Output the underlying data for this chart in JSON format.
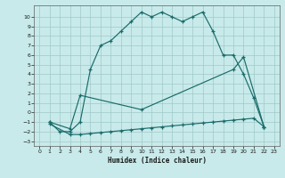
{
  "xlabel": "Humidex (Indice chaleur)",
  "background_color": "#c8eaea",
  "grid_color": "#a0c8c8",
  "line_color": "#1a6b6b",
  "xlim": [
    -0.5,
    23.5
  ],
  "ylim": [
    -3.5,
    11.2
  ],
  "xticks": [
    0,
    1,
    2,
    3,
    4,
    5,
    6,
    7,
    8,
    9,
    10,
    11,
    12,
    13,
    14,
    15,
    16,
    17,
    18,
    19,
    20,
    21,
    22,
    23
  ],
  "yticks": [
    -3,
    -2,
    -1,
    0,
    1,
    2,
    3,
    4,
    5,
    6,
    7,
    8,
    9,
    10
  ],
  "curve1_x": [
    1,
    2,
    3,
    4,
    5,
    6,
    7,
    8,
    9,
    10,
    11,
    12,
    13,
    14,
    15,
    16,
    17,
    18,
    19,
    20,
    21,
    22
  ],
  "curve1_y": [
    -1,
    -2,
    -2,
    -1,
    4.5,
    7.0,
    7.5,
    8.5,
    9.5,
    10.5,
    10.0,
    10.5,
    10.0,
    9.5,
    10.0,
    10.5,
    8.5,
    6.0,
    6.0,
    4.0,
    1.5,
    -1.5
  ],
  "curve2_x": [
    1,
    3,
    4,
    10,
    19,
    20,
    22
  ],
  "curve2_y": [
    -1,
    -1.7,
    1.8,
    0.3,
    4.5,
    5.8,
    -1.5
  ],
  "curve3_x": [
    1,
    3,
    4,
    5,
    6,
    7,
    8,
    9,
    10,
    11,
    12,
    13,
    14,
    15,
    16,
    17,
    18,
    19,
    20,
    21,
    22
  ],
  "curve3_y": [
    -1.2,
    -2.3,
    -2.3,
    -2.2,
    -2.1,
    -2.0,
    -1.9,
    -1.8,
    -1.7,
    -1.6,
    -1.5,
    -1.4,
    -1.3,
    -1.2,
    -1.1,
    -1.0,
    -0.9,
    -0.8,
    -0.7,
    -0.6,
    -1.5
  ]
}
